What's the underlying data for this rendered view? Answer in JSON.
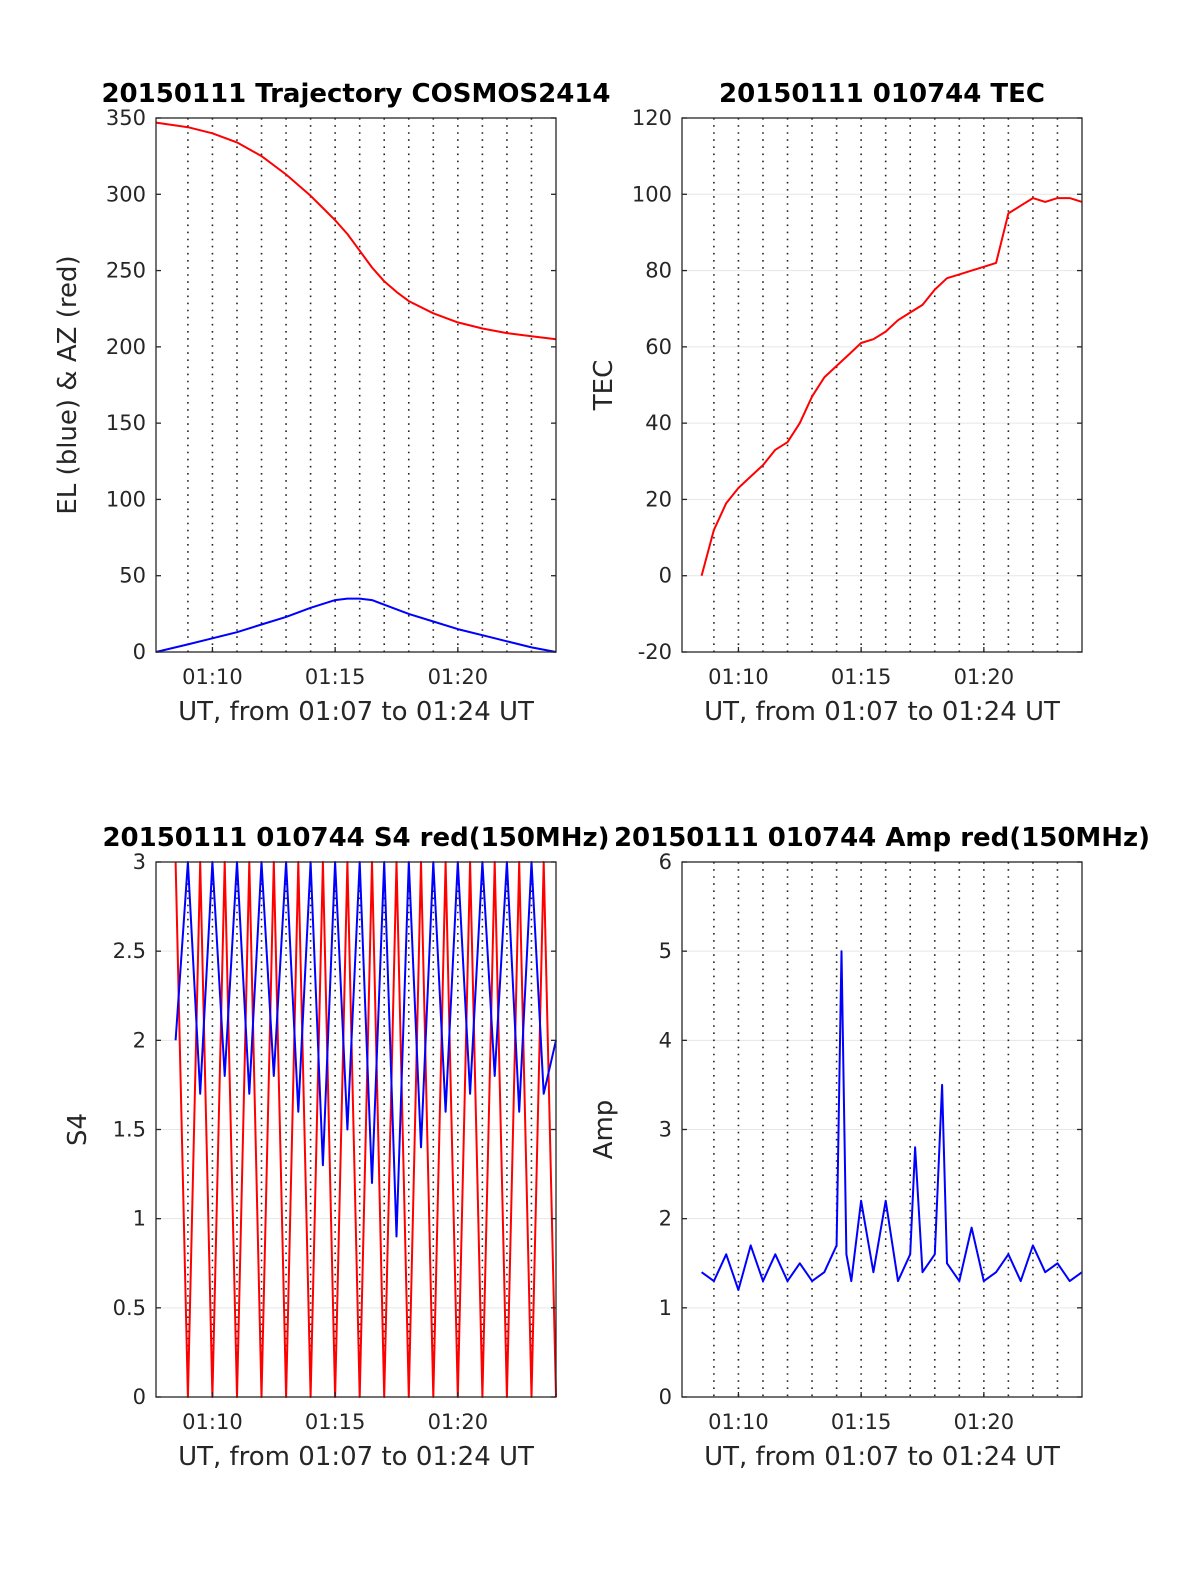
{
  "chart_data": [
    {
      "type": "line",
      "title": "20150111 Trajectory COSMOS2414",
      "xlabel": "UT, from 01:07 to 01:24 UT",
      "ylabel": "EL (blue) & AZ (red)",
      "xlim_minutes": [
        7.7,
        24.0
      ],
      "ylim": [
        0,
        350
      ],
      "x_ticks": [
        {
          "value": 10,
          "label": "01:10"
        },
        {
          "value": 15,
          "label": "01:15"
        },
        {
          "value": 20,
          "label": "01:20"
        }
      ],
      "y_ticks": [
        {
          "value": 0,
          "label": "0"
        },
        {
          "value": 50,
          "label": "50"
        },
        {
          "value": 100,
          "label": "100"
        },
        {
          "value": 150,
          "label": "150"
        },
        {
          "value": 200,
          "label": "200"
        },
        {
          "value": 250,
          "label": "250"
        },
        {
          "value": 300,
          "label": "300"
        },
        {
          "value": 350,
          "label": "350"
        }
      ],
      "grid": "vertical dotted",
      "series": [
        {
          "color": "#ff0000",
          "x": [
            7.7,
            9,
            10,
            11,
            12,
            13,
            14,
            14.5,
            15,
            15.5,
            16,
            16.5,
            17,
            17.5,
            18,
            19,
            20,
            21,
            22,
            23,
            24
          ],
          "y": [
            347,
            344,
            340,
            334,
            325,
            313,
            299,
            291,
            283,
            274,
            263,
            252,
            243,
            236,
            230,
            222,
            216,
            212,
            209,
            207,
            205
          ]
        },
        {
          "color": "#0000ff",
          "x": [
            7.7,
            9,
            10,
            11,
            12,
            13,
            14,
            15,
            15.5,
            16,
            16.5,
            17,
            18,
            19,
            20,
            21,
            22,
            23,
            24
          ],
          "y": [
            0,
            5,
            9,
            13,
            18,
            23,
            29,
            34,
            35,
            35,
            34,
            31,
            25,
            20,
            15,
            11,
            7,
            3,
            0
          ]
        }
      ]
    },
    {
      "type": "line",
      "title": "20150111 010744 TEC",
      "xlabel": "UT, from 01:07 to 01:24 UT",
      "ylabel": "TEC",
      "xlim_minutes": [
        7.7,
        24.0
      ],
      "ylim": [
        -20,
        120
      ],
      "x_ticks": [
        {
          "value": 10,
          "label": "01:10"
        },
        {
          "value": 15,
          "label": "01:15"
        },
        {
          "value": 20,
          "label": "01:20"
        }
      ],
      "y_ticks": [
        {
          "value": -20,
          "label": "-20"
        },
        {
          "value": 0,
          "label": "0"
        },
        {
          "value": 20,
          "label": "20"
        },
        {
          "value": 40,
          "label": "40"
        },
        {
          "value": 60,
          "label": "60"
        },
        {
          "value": 80,
          "label": "80"
        },
        {
          "value": 100,
          "label": "100"
        },
        {
          "value": 120,
          "label": "120"
        }
      ],
      "grid": "vertical dotted, horizontal solid",
      "series": [
        {
          "color": "#ff0000",
          "x": [
            8.5,
            9.0,
            9.5,
            10.0,
            10.5,
            11.0,
            11.5,
            12.0,
            12.5,
            13.0,
            13.5,
            14.0,
            14.5,
            15.0,
            15.5,
            16.0,
            16.5,
            17.0,
            17.5,
            18.0,
            18.5,
            19.0,
            19.5,
            20.0,
            20.5,
            21.0,
            21.5,
            22.0,
            22.5,
            23.0,
            23.5,
            24.0
          ],
          "y": [
            0,
            12,
            19,
            23,
            26,
            29,
            33,
            35,
            40,
            47,
            52,
            55,
            58,
            61,
            62,
            64,
            67,
            69,
            71,
            75,
            78,
            79,
            80,
            81,
            82,
            95,
            97,
            99,
            98,
            99,
            99,
            98
          ]
        }
      ]
    },
    {
      "type": "line",
      "title": "20150111 010744 S4 red(150MHz)",
      "xlabel": "UT, from 01:07 to 01:24 UT",
      "ylabel": "S4",
      "xlim_minutes": [
        7.7,
        24.0
      ],
      "ylim": [
        0,
        3
      ],
      "x_ticks": [
        {
          "value": 10,
          "label": "01:10"
        },
        {
          "value": 15,
          "label": "01:15"
        },
        {
          "value": 20,
          "label": "01:20"
        }
      ],
      "y_ticks": [
        {
          "value": 0,
          "label": "0"
        },
        {
          "value": 0.5,
          "label": "0.5"
        },
        {
          "value": 1,
          "label": "1"
        },
        {
          "value": 1.5,
          "label": "1.5"
        },
        {
          "value": 2,
          "label": "2"
        },
        {
          "value": 2.5,
          "label": "2.5"
        },
        {
          "value": 3,
          "label": "3"
        }
      ],
      "grid": "vertical dotted, horizontal solid",
      "series": [
        {
          "color": "#ff0000",
          "x": [
            8.5,
            9,
            9.5,
            10,
            10.5,
            11,
            11.5,
            12,
            12.5,
            13,
            13.5,
            14,
            14.5,
            15,
            15.5,
            16,
            16.5,
            17,
            17.5,
            18,
            18.5,
            19,
            19.5,
            20,
            20.5,
            21,
            21.5,
            22,
            22.5,
            23,
            23.5,
            24
          ],
          "y": [
            3.0,
            0.0,
            3.0,
            0.0,
            3.0,
            0.0,
            3.0,
            0.0,
            3.0,
            0.0,
            3.0,
            0.0,
            3.0,
            0.0,
            3.0,
            0.0,
            3.0,
            0.0,
            3.0,
            0.0,
            3.0,
            0.0,
            3.0,
            0.0,
            3.0,
            0.0,
            3.0,
            0.0,
            3.0,
            0.0,
            3.0,
            0.0
          ]
        },
        {
          "color": "#0000ff",
          "x": [
            8.5,
            9,
            9.5,
            10,
            10.5,
            11,
            11.5,
            12,
            12.5,
            13,
            13.5,
            14,
            14.5,
            15,
            15.5,
            16,
            16.5,
            17,
            17.5,
            18,
            18.5,
            19,
            19.5,
            20,
            20.5,
            21,
            21.5,
            22,
            22.5,
            23,
            23.5,
            24
          ],
          "y": [
            2.0,
            3.0,
            1.7,
            3.0,
            1.8,
            3.0,
            1.7,
            3.0,
            1.8,
            3.0,
            1.6,
            3.0,
            1.3,
            3.0,
            1.5,
            3.0,
            1.2,
            3.0,
            0.9,
            3.0,
            1.4,
            3.0,
            1.6,
            3.0,
            1.7,
            3.0,
            1.8,
            3.0,
            1.6,
            3.0,
            1.7,
            2.0
          ]
        }
      ]
    },
    {
      "type": "line",
      "title": "20150111 010744 Amp red(150MHz)",
      "xlabel": "UT, from 01:07 to 01:24 UT",
      "ylabel": "Amp",
      "xlim_minutes": [
        7.7,
        24.0
      ],
      "ylim": [
        0,
        6
      ],
      "x_ticks": [
        {
          "value": 10,
          "label": "01:10"
        },
        {
          "value": 15,
          "label": "01:15"
        },
        {
          "value": 20,
          "label": "01:20"
        }
      ],
      "y_ticks": [
        {
          "value": 0,
          "label": "0"
        },
        {
          "value": 1,
          "label": "1"
        },
        {
          "value": 2,
          "label": "2"
        },
        {
          "value": 3,
          "label": "3"
        },
        {
          "value": 4,
          "label": "4"
        },
        {
          "value": 5,
          "label": "5"
        },
        {
          "value": 6,
          "label": "6"
        }
      ],
      "grid": "vertical dotted, horizontal solid",
      "series": [
        {
          "color": "#0000ff",
          "x": [
            8.5,
            9,
            9.5,
            10,
            10.5,
            11,
            11.5,
            12,
            12.5,
            13,
            13.5,
            14,
            14.2,
            14.4,
            14.6,
            15,
            15.5,
            16,
            16.5,
            17,
            17.2,
            17.5,
            18,
            18.3,
            18.5,
            19,
            19.5,
            20,
            20.5,
            21,
            21.5,
            22,
            22.5,
            23,
            23.5,
            24
          ],
          "y": [
            1.4,
            1.3,
            1.6,
            1.2,
            1.7,
            1.3,
            1.6,
            1.3,
            1.5,
            1.3,
            1.4,
            1.7,
            5.0,
            1.6,
            1.3,
            2.2,
            1.4,
            2.2,
            1.3,
            1.6,
            2.8,
            1.4,
            1.6,
            3.5,
            1.5,
            1.3,
            1.9,
            1.3,
            1.4,
            1.6,
            1.3,
            1.7,
            1.4,
            1.5,
            1.3,
            1.4
          ]
        }
      ]
    }
  ]
}
